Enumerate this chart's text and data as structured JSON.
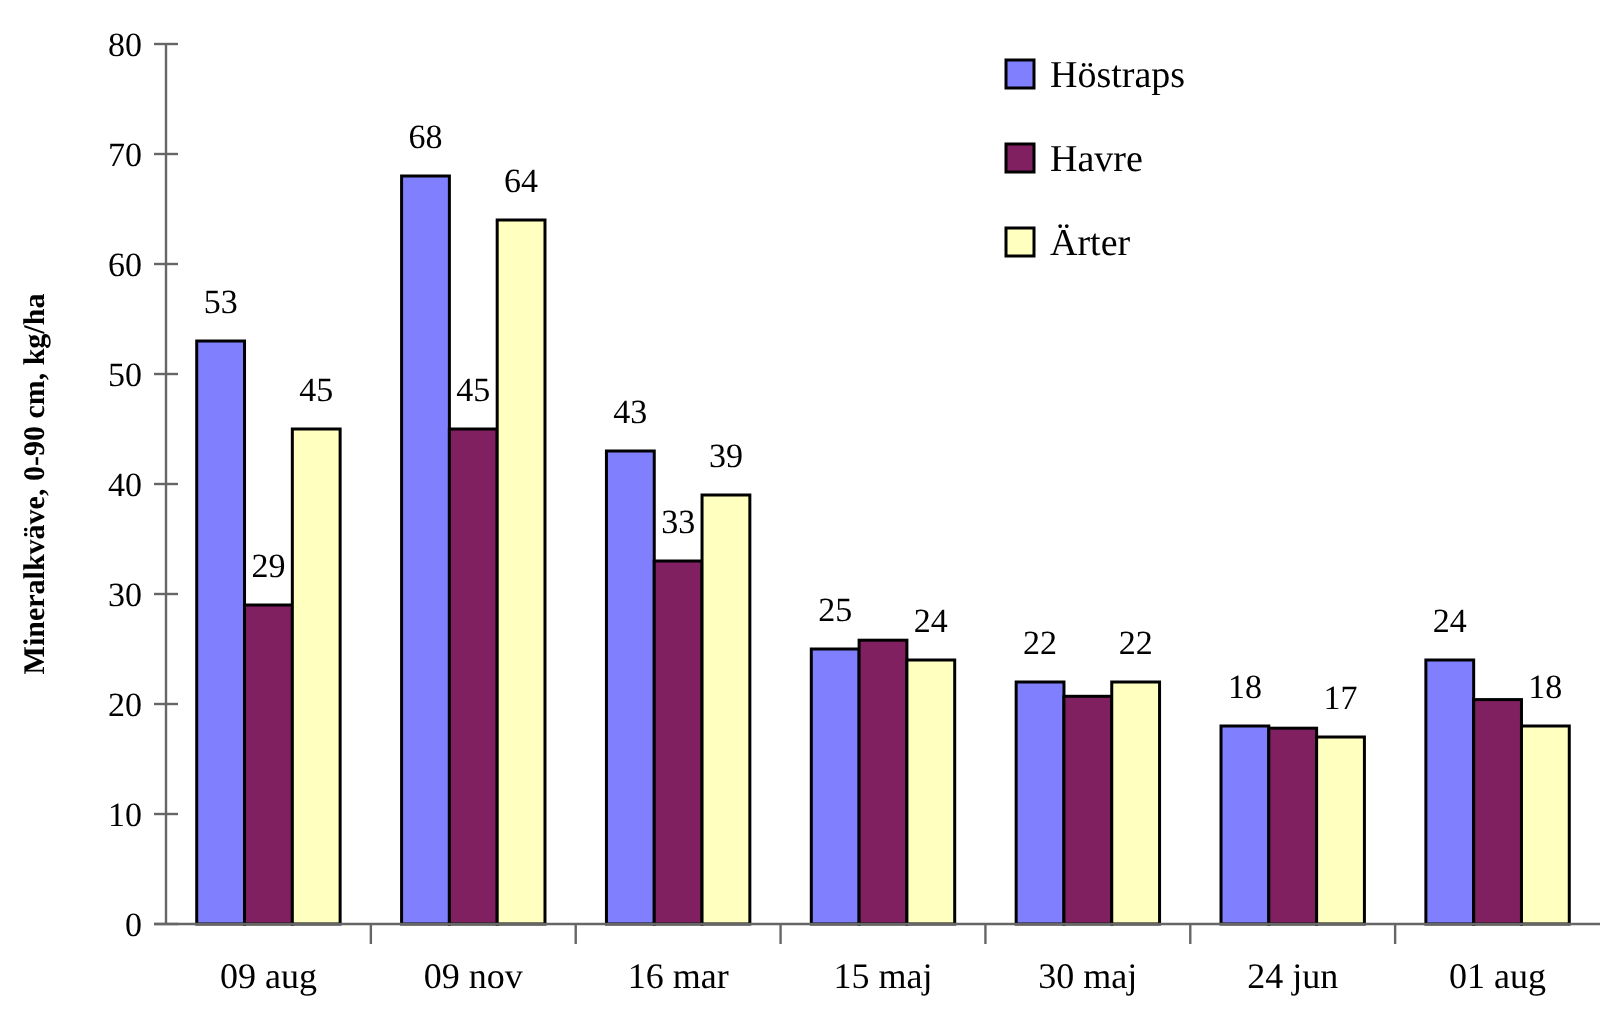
{
  "chart_data": {
    "type": "bar",
    "ylabel": "Mineralkväve, 0-90 cm, kg/ha",
    "categories": [
      "09 aug",
      "09 nov",
      "16 mar",
      "15 maj",
      "30 maj",
      "24 jun",
      "01 aug"
    ],
    "series": [
      {
        "name": "Höstraps",
        "color": "#8080ff",
        "values": [
          53,
          68,
          43,
          25,
          22,
          18,
          24
        ],
        "value_labels": [
          "53",
          "68",
          "43",
          "25",
          "22",
          "18",
          "24"
        ]
      },
      {
        "name": "Havre",
        "color": "#802060",
        "values": [
          29,
          45,
          33,
          25.8,
          20.7,
          17.8,
          20.4
        ],
        "value_labels": [
          "29",
          "45",
          "33",
          null,
          null,
          null,
          null
        ]
      },
      {
        "name": "Ärter",
        "color": "#ffffc0",
        "values": [
          45,
          64,
          39,
          24,
          22,
          17,
          18
        ],
        "value_labels": [
          "45",
          "64",
          "39",
          "24",
          "22",
          "17",
          "18"
        ]
      }
    ],
    "ylim": [
      0,
      80
    ],
    "yticks": [
      0,
      10,
      20,
      30,
      40,
      50,
      60,
      70,
      80
    ],
    "grid": false,
    "legend": "top right"
  }
}
